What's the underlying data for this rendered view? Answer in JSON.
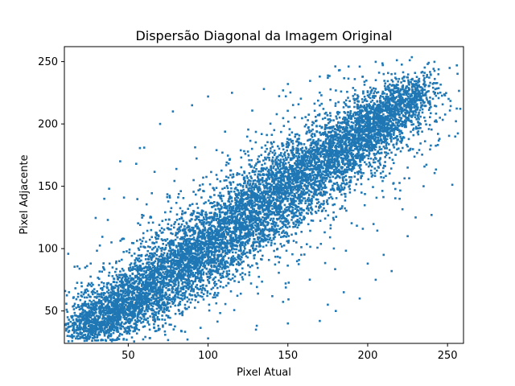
{
  "chart_data": {
    "type": "scatter",
    "title": "Dispersão Diagonal da Imagem Original",
    "xlabel": "Pixel Atual",
    "ylabel": "Pixel Adjacente",
    "xlim": [
      10,
      260
    ],
    "ylim": [
      24,
      262
    ],
    "xticks": [
      50,
      100,
      150,
      200,
      250
    ],
    "yticks": [
      50,
      100,
      150,
      200,
      250
    ],
    "grid": false,
    "legend": false,
    "marker": "s",
    "marker_color": "#1f77b4",
    "series": [
      {
        "band_points": [
          [
            22,
            38
          ],
          [
            30,
            40
          ],
          [
            40,
            48
          ],
          [
            50,
            58
          ],
          [
            60,
            65
          ],
          [
            70,
            75
          ],
          [
            80,
            85
          ],
          [
            90,
            92
          ],
          [
            100,
            102
          ],
          [
            110,
            112
          ],
          [
            120,
            122
          ],
          [
            130,
            130
          ],
          [
            140,
            140
          ],
          [
            150,
            150
          ],
          [
            160,
            160
          ],
          [
            170,
            168
          ],
          [
            180,
            178
          ],
          [
            190,
            188
          ],
          [
            200,
            196
          ],
          [
            210,
            206
          ],
          [
            220,
            214
          ],
          [
            230,
            228
          ]
        ],
        "outlier_points": [
          [
            17,
            40
          ],
          [
            20,
            33
          ],
          [
            35,
            140
          ],
          [
            38,
            148
          ],
          [
            45,
            170
          ],
          [
            55,
            168
          ],
          [
            60,
            181
          ],
          [
            70,
            200
          ],
          [
            78,
            210
          ],
          [
            90,
            215
          ],
          [
            100,
            222
          ],
          [
            115,
            225
          ],
          [
            135,
            228
          ],
          [
            150,
            232
          ],
          [
            170,
            238
          ],
          [
            182,
            243
          ],
          [
            195,
            246
          ],
          [
            210,
            240
          ],
          [
            100,
            28
          ],
          [
            130,
            35
          ],
          [
            150,
            40
          ],
          [
            170,
            42
          ],
          [
            180,
            50
          ],
          [
            195,
            60
          ],
          [
            205,
            75
          ],
          [
            215,
            82
          ],
          [
            225,
            110
          ],
          [
            230,
            125
          ],
          [
            235,
            150
          ],
          [
            240,
            127
          ],
          [
            244,
            192
          ],
          [
            245,
            188
          ],
          [
            228,
            230
          ],
          [
            232,
            226
          ],
          [
            238,
            217
          ],
          [
            175,
            55
          ],
          [
            185,
            65
          ],
          [
            200,
            88
          ],
          [
            210,
            95
          ],
          [
            220,
            140
          ],
          [
            225,
            165
          ]
        ]
      }
    ]
  }
}
